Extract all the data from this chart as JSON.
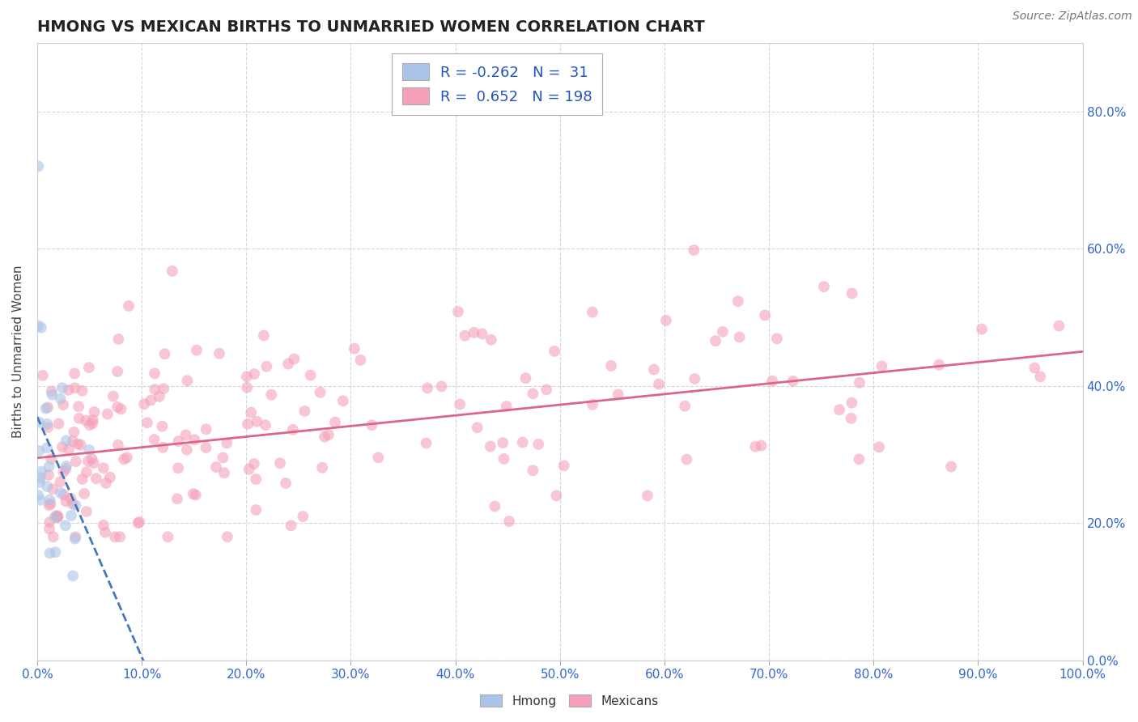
{
  "title": "HMONG VS MEXICAN BIRTHS TO UNMARRIED WOMEN CORRELATION CHART",
  "source": "Source: ZipAtlas.com",
  "ylabel": "Births to Unmarried Women",
  "xlim": [
    0,
    1.0
  ],
  "ylim": [
    0,
    0.9
  ],
  "xtick_vals": [
    0.0,
    0.1,
    0.2,
    0.3,
    0.4,
    0.5,
    0.6,
    0.7,
    0.8,
    0.9,
    1.0
  ],
  "ytick_vals": [
    0.0,
    0.2,
    0.4,
    0.6,
    0.8
  ],
  "hmong_color": "#aac4e8",
  "mexican_color": "#f5a0b8",
  "hmong_line_color": "#4477bb",
  "mexican_line_color": "#dd6688",
  "legend_text_color": "#2255bb",
  "R_hmong": -0.262,
  "N_hmong": 31,
  "R_mexican": 0.652,
  "N_mexican": 198,
  "background_color": "#ffffff",
  "grid_color": "#cccccc",
  "title_fontsize": 14,
  "axis_label_fontsize": 11,
  "tick_fontsize": 11,
  "legend_fontsize": 13,
  "source_fontsize": 10,
  "marker_size": 100,
  "marker_alpha": 0.6,
  "hmong_trend_intercept": 0.355,
  "hmong_trend_slope": -3.5,
  "mexican_trend_intercept": 0.295,
  "mexican_trend_slope": 0.155
}
